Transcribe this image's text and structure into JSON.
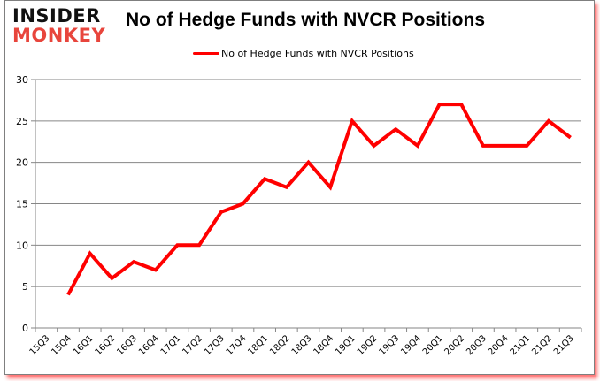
{
  "brand": {
    "line1": "INSIDER",
    "line2": "MONKEY"
  },
  "colors": {
    "series": "#ff0000",
    "grid": "#868686",
    "brand_red": "#e8453c",
    "shadow": "#ff0000"
  },
  "chart_data": {
    "type": "line",
    "title": "No of Hedge Funds with NVCR Positions",
    "xlabel": "",
    "ylabel": "",
    "ylim": [
      0,
      30
    ],
    "yticks": [
      0,
      5,
      10,
      15,
      20,
      25,
      30
    ],
    "grid": true,
    "legend_position": "top",
    "categories": [
      "15Q3",
      "15Q4",
      "16Q1",
      "16Q2",
      "16Q3",
      "16Q4",
      "17Q1",
      "17Q2",
      "17Q3",
      "17Q4",
      "18Q1",
      "18Q2",
      "18Q3",
      "18Q4",
      "19Q1",
      "19Q2",
      "19Q3",
      "19Q4",
      "20Q1",
      "20Q2",
      "20Q3",
      "20Q4",
      "21Q1",
      "21Q2",
      "21Q3"
    ],
    "series": [
      {
        "name": "No of Hedge Funds with NVCR Positions",
        "values": [
          null,
          4,
          9,
          6,
          8,
          7,
          10,
          10,
          14,
          15,
          18,
          17,
          20,
          17,
          25,
          22,
          24,
          22,
          27,
          27,
          22,
          22,
          22,
          25,
          23
        ]
      }
    ]
  }
}
